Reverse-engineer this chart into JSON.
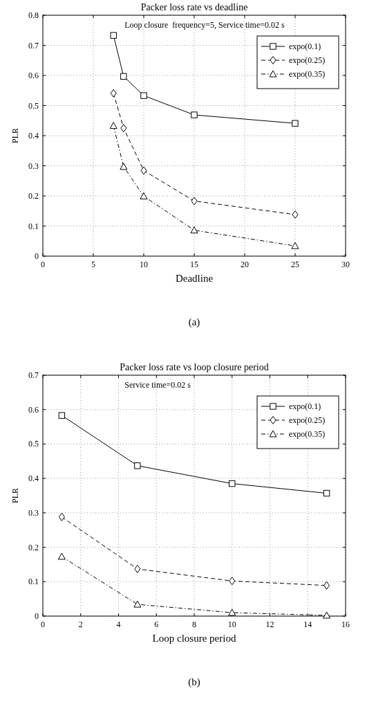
{
  "chart_data": [
    {
      "type": "line",
      "title": "Packer loss rate vs deadline",
      "xlabel": "Deadline",
      "ylabel": "PLR",
      "xlim": [
        0,
        30
      ],
      "xticks": [
        0,
        5,
        10,
        15,
        20,
        25,
        30
      ],
      "ylim": [
        0,
        0.8
      ],
      "yticks": [
        0,
        0.1,
        0.2,
        0.3,
        0.4,
        0.5,
        0.6,
        0.7,
        0.8
      ],
      "grid": true,
      "legend": "top right",
      "annotations": [
        "Loop closure  frequency=5, Service time=0.02 s",
        "(a)"
      ],
      "x": [
        7,
        8,
        10,
        15,
        25
      ],
      "series": [
        {
          "name": "expo(0.1)",
          "color": "#000000",
          "marker": "square",
          "line_style": "solid",
          "values": [
            0.733,
            0.597,
            0.533,
            0.469,
            0.441
          ]
        },
        {
          "name": "expo(0.25)",
          "color": "#000000",
          "marker": "diamond",
          "line_style": "dashed",
          "values": [
            0.541,
            0.425,
            0.284,
            0.183,
            0.138
          ]
        },
        {
          "name": "expo(0.35)",
          "color": "#000000",
          "marker": "triangle",
          "line_style": "dotted",
          "values": [
            0.433,
            0.297,
            0.199,
            0.086,
            0.034
          ]
        }
      ]
    },
    {
      "type": "line",
      "title": "Packer loss rate vs loop closure period",
      "xlabel": "Loop closure period",
      "ylabel": "PLR",
      "xlim": [
        0,
        16
      ],
      "xticks": [
        0,
        2,
        4,
        6,
        8,
        10,
        12,
        14,
        16
      ],
      "ylim": [
        0,
        0.7
      ],
      "yticks": [
        0,
        0.1,
        0.2,
        0.3,
        0.4,
        0.5,
        0.6,
        0.7
      ],
      "grid": true,
      "legend": "top right",
      "annotations": [
        "Service time=0.02 s",
        "(b)"
      ],
      "x": [
        1,
        5,
        10,
        15
      ],
      "series": [
        {
          "name": "expo(0.1)",
          "color": "#000000",
          "marker": "square",
          "line_style": "solid",
          "values": [
            0.583,
            0.437,
            0.385,
            0.357
          ]
        },
        {
          "name": "expo(0.25)",
          "color": "#000000",
          "marker": "diamond",
          "line_style": "dashed",
          "values": [
            0.288,
            0.137,
            0.102,
            0.089
          ]
        },
        {
          "name": "expo(0.35)",
          "color": "#000000",
          "marker": "triangle",
          "line_style": "dotted",
          "values": [
            0.173,
            0.034,
            0.01,
            0.002
          ]
        }
      ]
    }
  ]
}
